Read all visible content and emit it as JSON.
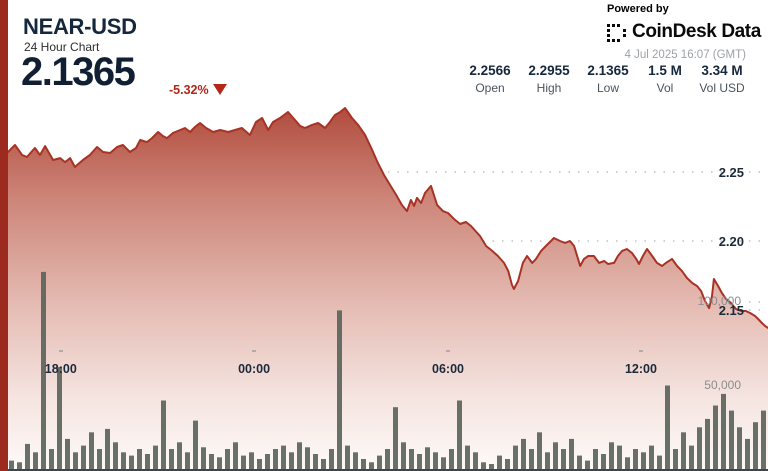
{
  "header": {
    "title": "NEAR-USD",
    "subtitle": "24 Hour Chart",
    "price": "2.1365",
    "change": "-5.32%",
    "change_direction": "down",
    "powered_by": "Powered by",
    "brand": "CoinDesk Data",
    "timestamp": "4 Jul 2025 16:07 (GMT)",
    "stats": [
      {
        "value": "2.2566",
        "label": "Open"
      },
      {
        "value": "2.2955",
        "label": "High"
      },
      {
        "value": "2.1365",
        "label": "Low"
      },
      {
        "value": "1.5 M",
        "label": "Vol"
      },
      {
        "value": "3.34 M",
        "label": "Vol USD"
      }
    ]
  },
  "colors": {
    "accent_red": "#b3261a",
    "line_red": "#a83325",
    "left_strip_red": "#9c2a1e",
    "navy_text": "#15273c",
    "volume_bar": "#5b645b",
    "grid_gray": "#9c9c9c",
    "muted_gray": "#8d8d8d"
  },
  "chart_data": {
    "type": "area",
    "title": "NEAR-USD 24 Hour Chart",
    "x_axis": {
      "unit": "hours",
      "range": [
        0,
        24
      ],
      "ticks": [
        {
          "label": "18:00",
          "hour": 1.9
        },
        {
          "label": "00:00",
          "hour": 7.94
        },
        {
          "label": "06:00",
          "hour": 14.0
        },
        {
          "label": "12:00",
          "hour": 20.03
        }
      ]
    },
    "price_axis": {
      "side": "right",
      "ticks": [
        {
          "label": "2.25",
          "value": 2.25
        },
        {
          "label": "2.20",
          "value": 2.2
        },
        {
          "label": "2.15",
          "value": 2.15
        }
      ]
    },
    "volume_axis": {
      "side": "right",
      "ticks": [
        {
          "label": "100,000",
          "value": 100000
        },
        {
          "label": "50,000",
          "value": 50000
        }
      ]
    },
    "price_series": [
      [
        0.25,
        2.2645
      ],
      [
        0.47,
        2.2696
      ],
      [
        0.69,
        2.2623
      ],
      [
        0.84,
        2.2609
      ],
      [
        1.09,
        2.2674
      ],
      [
        1.25,
        2.2623
      ],
      [
        1.41,
        2.2688
      ],
      [
        1.66,
        2.2587
      ],
      [
        1.88,
        2.2601
      ],
      [
        2.03,
        2.2572
      ],
      [
        2.19,
        2.2601
      ],
      [
        2.34,
        2.2536
      ],
      [
        2.59,
        2.2587
      ],
      [
        2.81,
        2.2623
      ],
      [
        3.03,
        2.2681
      ],
      [
        3.22,
        2.2645
      ],
      [
        3.44,
        2.2638
      ],
      [
        3.66,
        2.2681
      ],
      [
        3.84,
        2.2696
      ],
      [
        4.06,
        2.2645
      ],
      [
        4.25,
        2.2674
      ],
      [
        4.38,
        2.2732
      ],
      [
        4.59,
        2.2717
      ],
      [
        4.75,
        2.2746
      ],
      [
        4.94,
        2.279
      ],
      [
        5.09,
        2.2761
      ],
      [
        5.22,
        2.2746
      ],
      [
        5.41,
        2.2783
      ],
      [
        5.63,
        2.2804
      ],
      [
        5.78,
        2.2819
      ],
      [
        5.94,
        2.279
      ],
      [
        6.09,
        2.2826
      ],
      [
        6.25,
        2.2855
      ],
      [
        6.44,
        2.2819
      ],
      [
        6.66,
        2.279
      ],
      [
        6.88,
        2.2804
      ],
      [
        7.13,
        2.279
      ],
      [
        7.34,
        2.2804
      ],
      [
        7.56,
        2.2819
      ],
      [
        7.81,
        2.2768
      ],
      [
        8.0,
        2.2862
      ],
      [
        8.19,
        2.2891
      ],
      [
        8.38,
        2.2804
      ],
      [
        8.53,
        2.2862
      ],
      [
        8.75,
        2.2891
      ],
      [
        9.0,
        2.2935
      ],
      [
        9.22,
        2.2877
      ],
      [
        9.38,
        2.2833
      ],
      [
        9.53,
        2.2819
      ],
      [
        9.75,
        2.2841
      ],
      [
        9.94,
        2.2855
      ],
      [
        10.16,
        2.2819
      ],
      [
        10.31,
        2.2862
      ],
      [
        10.47,
        2.2913
      ],
      [
        10.63,
        2.2935
      ],
      [
        10.78,
        2.2964
      ],
      [
        11.0,
        2.2891
      ],
      [
        11.19,
        2.2841
      ],
      [
        11.41,
        2.2768
      ],
      [
        11.63,
        2.2659
      ],
      [
        11.81,
        2.2565
      ],
      [
        12.0,
        2.2478
      ],
      [
        12.19,
        2.2406
      ],
      [
        12.38,
        2.2333
      ],
      [
        12.56,
        2.2261
      ],
      [
        12.72,
        2.2217
      ],
      [
        12.84,
        2.2297
      ],
      [
        12.94,
        2.2254
      ],
      [
        13.03,
        2.2312
      ],
      [
        13.16,
        2.2275
      ],
      [
        13.28,
        2.2348
      ],
      [
        13.47,
        2.2399
      ],
      [
        13.66,
        2.2261
      ],
      [
        13.84,
        2.2217
      ],
      [
        14.0,
        2.2203
      ],
      [
        14.19,
        2.2159
      ],
      [
        14.38,
        2.2123
      ],
      [
        14.56,
        2.2138
      ],
      [
        14.72,
        2.2109
      ],
      [
        15.0,
        2.2036
      ],
      [
        15.19,
        2.1964
      ],
      [
        15.38,
        2.1928
      ],
      [
        15.56,
        2.1891
      ],
      [
        15.75,
        2.1841
      ],
      [
        15.88,
        2.1783
      ],
      [
        16.0,
        2.1681
      ],
      [
        16.06,
        2.1652
      ],
      [
        16.19,
        2.171
      ],
      [
        16.34,
        2.1841
      ],
      [
        16.47,
        2.1891
      ],
      [
        16.63,
        2.1841
      ],
      [
        16.75,
        2.187
      ],
      [
        16.91,
        2.1928
      ],
      [
        17.06,
        2.1964
      ],
      [
        17.22,
        2.2
      ],
      [
        17.31,
        2.2022
      ],
      [
        17.5,
        2.2
      ],
      [
        17.66,
        2.1986
      ],
      [
        17.81,
        2.2
      ],
      [
        17.94,
        2.1964
      ],
      [
        18.13,
        2.1819
      ],
      [
        18.25,
        2.187
      ],
      [
        18.38,
        2.1891
      ],
      [
        18.56,
        2.1891
      ],
      [
        18.72,
        2.1841
      ],
      [
        18.88,
        2.1855
      ],
      [
        19.0,
        2.1833
      ],
      [
        19.19,
        2.1841
      ],
      [
        19.31,
        2.1891
      ],
      [
        19.44,
        2.1928
      ],
      [
        19.59,
        2.1942
      ],
      [
        19.75,
        2.1913
      ],
      [
        19.88,
        2.187
      ],
      [
        19.97,
        2.1833
      ],
      [
        20.09,
        2.1891
      ],
      [
        20.22,
        2.1942
      ],
      [
        20.38,
        2.1891
      ],
      [
        20.53,
        2.1841
      ],
      [
        20.69,
        2.1819
      ],
      [
        20.81,
        2.1841
      ],
      [
        21.0,
        2.187
      ],
      [
        21.16,
        2.1819
      ],
      [
        21.31,
        2.1783
      ],
      [
        21.47,
        2.1732
      ],
      [
        21.63,
        2.1696
      ],
      [
        21.78,
        2.1674
      ],
      [
        21.91,
        2.1638
      ],
      [
        22.03,
        2.1565
      ],
      [
        22.16,
        2.1514
      ],
      [
        22.25,
        2.1601
      ],
      [
        22.31,
        2.1725
      ],
      [
        22.44,
        2.1674
      ],
      [
        22.56,
        2.1623
      ],
      [
        22.69,
        2.158
      ],
      [
        22.84,
        2.1551
      ],
      [
        23.0,
        2.1507
      ],
      [
        23.16,
        2.1493
      ],
      [
        23.31,
        2.1493
      ],
      [
        23.44,
        2.1478
      ],
      [
        23.59,
        2.1457
      ],
      [
        23.69,
        2.1435
      ],
      [
        23.81,
        2.1406
      ],
      [
        23.91,
        2.1384
      ],
      [
        24.0,
        2.137
      ]
    ],
    "volume_series": [
      8000,
      5000,
      4000,
      15000,
      10000,
      118000,
      12000,
      61000,
      18000,
      10000,
      14000,
      22000,
      12000,
      24000,
      16000,
      10000,
      8000,
      12000,
      9000,
      14000,
      41000,
      12000,
      16000,
      10000,
      29000,
      13000,
      9000,
      7000,
      12000,
      16000,
      8000,
      10000,
      6000,
      9000,
      12000,
      14000,
      10000,
      16000,
      13000,
      9000,
      6000,
      12000,
      95000,
      14000,
      10000,
      6000,
      4000,
      8000,
      12000,
      37000,
      16000,
      12000,
      9000,
      13000,
      10000,
      7000,
      12000,
      41000,
      14000,
      10000,
      4000,
      3000,
      8000,
      6000,
      14000,
      18000,
      12000,
      22000,
      10000,
      16000,
      12000,
      18000,
      8000,
      5000,
      12000,
      9000,
      16000,
      14000,
      7000,
      12000,
      10000,
      14000,
      8000,
      50000,
      12000,
      22000,
      14000,
      25000,
      30000,
      38000,
      45000,
      35000,
      25000,
      18000,
      28000,
      35000
    ]
  }
}
